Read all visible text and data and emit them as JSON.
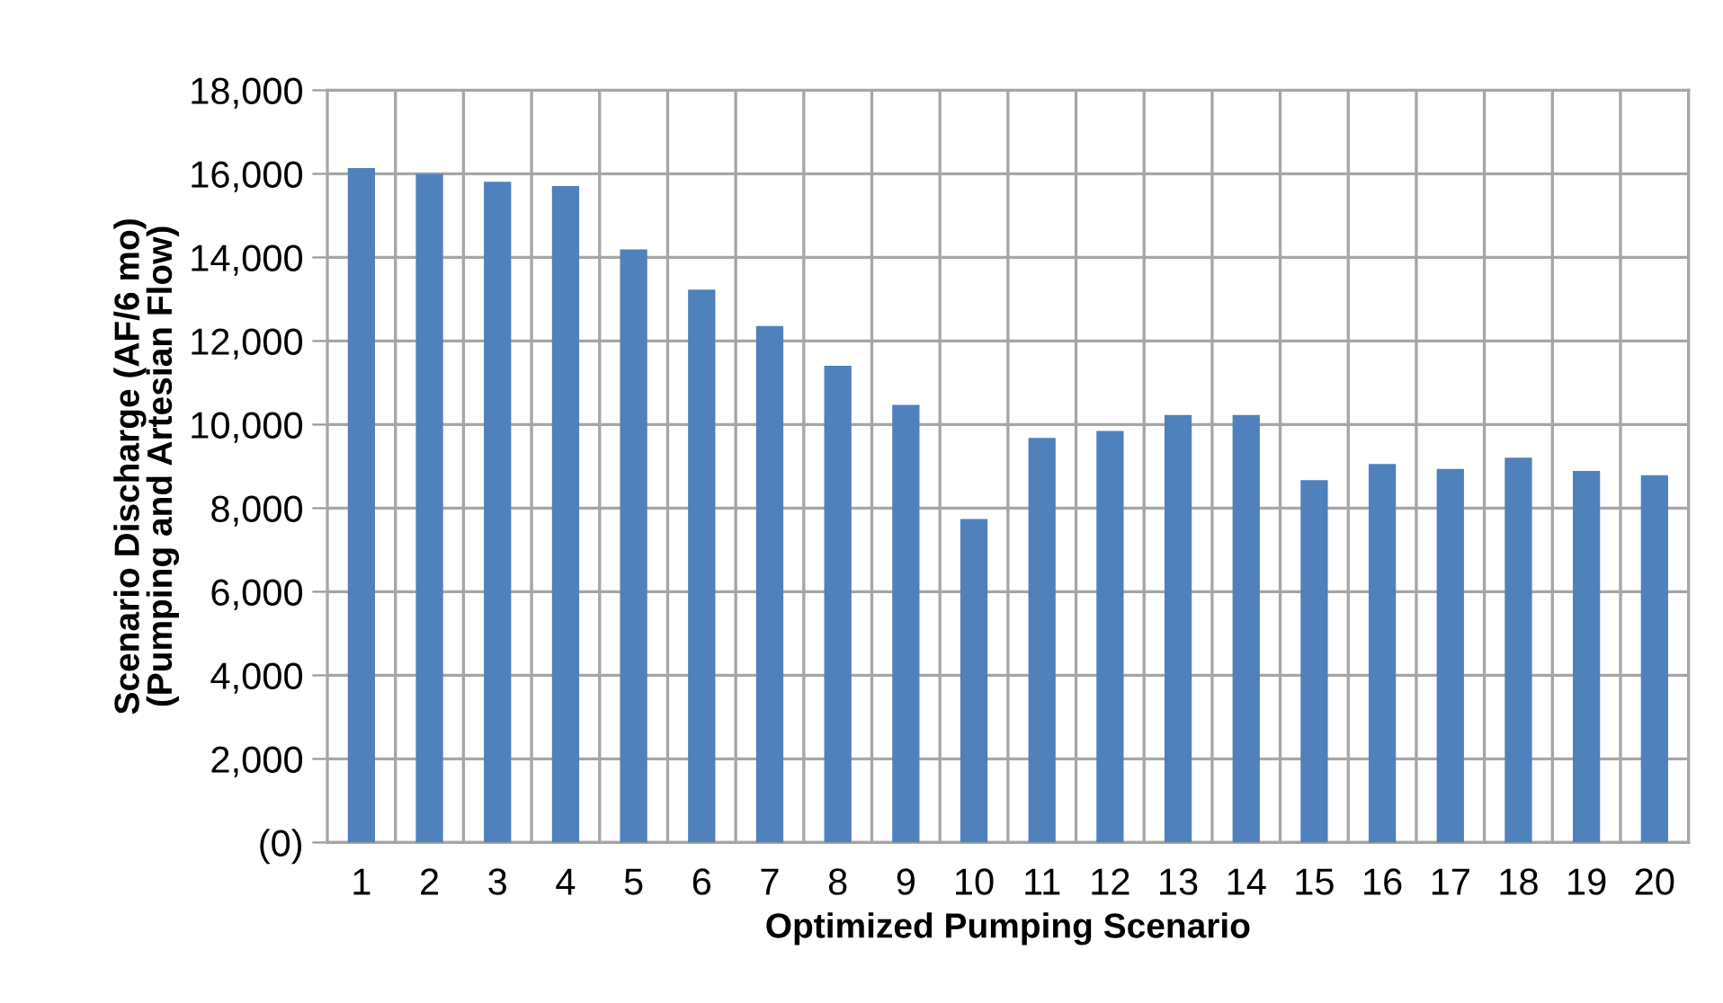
{
  "chart_data": {
    "type": "bar",
    "xlabel": "Optimized Pumping Scenario",
    "ylabel": "Scenario Discharge (AF/6 mo)\n(Pumping and Artesian Flow)",
    "categories": [
      "1",
      "2",
      "3",
      "4",
      "5",
      "6",
      "7",
      "8",
      "9",
      "10",
      "11",
      "12",
      "13",
      "14",
      "15",
      "16",
      "17",
      "18",
      "19",
      "20"
    ],
    "values": [
      16140,
      16000,
      15810,
      15710,
      14190,
      13230,
      12360,
      11410,
      10470,
      7740,
      9680,
      9850,
      10230,
      10230,
      8670,
      9060,
      8940,
      9210,
      8890,
      8790
    ],
    "color": "#4f81bd",
    "ylim": [
      0,
      18000
    ],
    "yticks": [
      {
        "value": 0,
        "label": "(0)"
      },
      {
        "value": 2000,
        "label": "2,000"
      },
      {
        "value": 4000,
        "label": "4,000"
      },
      {
        "value": 6000,
        "label": "6,000"
      },
      {
        "value": 8000,
        "label": "8,000"
      },
      {
        "value": 10000,
        "label": "10,000"
      },
      {
        "value": 12000,
        "label": "12,000"
      },
      {
        "value": 14000,
        "label": "14,000"
      },
      {
        "value": 16000,
        "label": "16,000"
      },
      {
        "value": 18000,
        "label": "18,000"
      }
    ],
    "grid": true
  }
}
